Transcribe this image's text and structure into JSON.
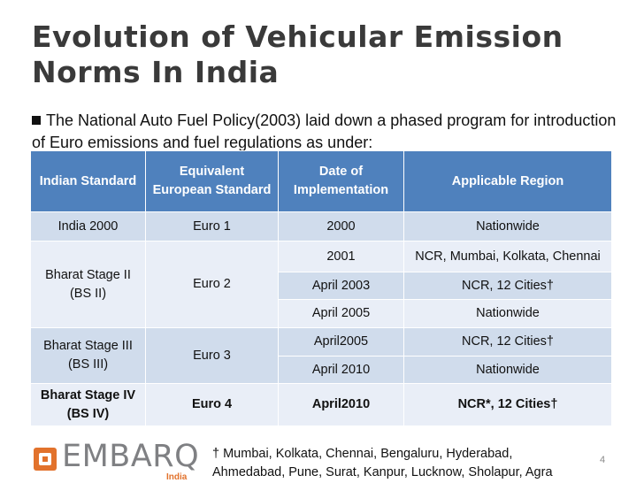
{
  "title": "Evolution of Vehicular Emission Norms In India",
  "intro": "The National Auto Fuel Policy(2003) laid down a phased program for introduction of Euro emissions  and fuel regulations as under:",
  "table": {
    "headers": [
      "Indian Standard",
      "Equivalent European Standard",
      "Date of Implementation",
      "Applicable Region"
    ],
    "groups": [
      {
        "standard": "India 2000",
        "euro": "Euro 1",
        "bold": false,
        "rows": [
          {
            "date": "2000",
            "region": "Nationwide"
          }
        ]
      },
      {
        "standard": "Bharat Stage II (BS II)",
        "euro": "Euro 2",
        "bold": false,
        "rows": [
          {
            "date": "2001",
            "region": "NCR, Mumbai, Kolkata, Chennai"
          },
          {
            "date": "April 2003",
            "region": "NCR, 12 Cities†"
          },
          {
            "date": "April 2005",
            "region": "Nationwide"
          }
        ]
      },
      {
        "standard": "Bharat Stage III (BS III)",
        "euro": "Euro 3",
        "bold": false,
        "rows": [
          {
            "date": "April2005",
            "region": "NCR, 12 Cities†"
          },
          {
            "date": "April 2010",
            "region": "Nationwide"
          }
        ]
      },
      {
        "standard": "Bharat Stage IV (BS IV)",
        "euro": "Euro 4",
        "bold": true,
        "rows": [
          {
            "date": "April2010",
            "region": "NCR*, 12 Cities†"
          }
        ]
      }
    ]
  },
  "footnote": {
    "line1": "† Mumbai, Kolkata, Chennai, Bengaluru, Hyderabad,",
    "line2": "Ahmedabad, Pune, Surat, Kanpur, Lucknow, Sholapur, Agra"
  },
  "page_number": "4",
  "logo": {
    "wordmark": "EMBARQ",
    "sub": "India",
    "accent_color": "#e2722c",
    "text_color": "#7f8083"
  }
}
